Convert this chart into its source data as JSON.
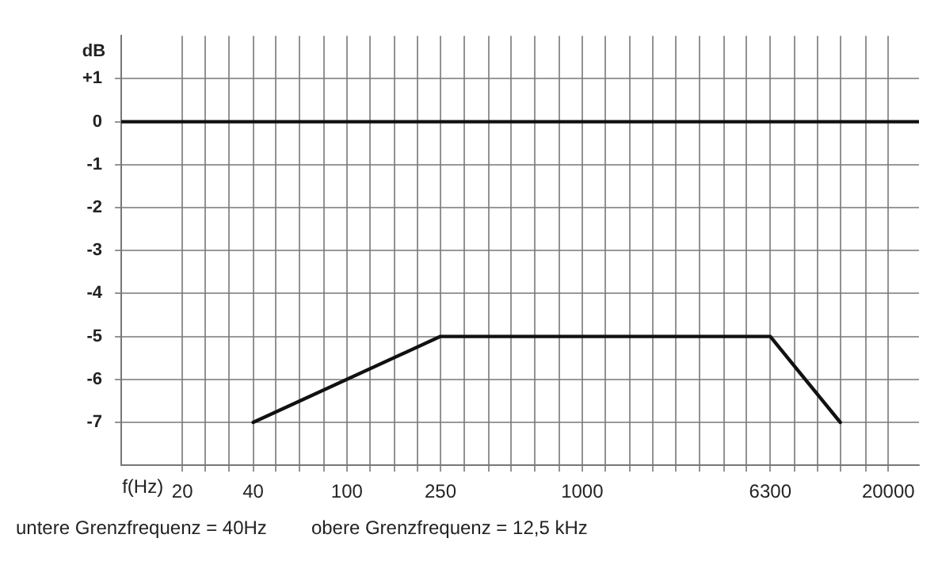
{
  "chart_data": {
    "type": "line",
    "xlabel": "f(Hz)",
    "ylabel": "dB",
    "log": "x",
    "grid": true,
    "legend": false,
    "marker": "none",
    "line_style": "solid",
    "xlim": [
      11,
      27000
    ],
    "ylim": [
      -8,
      2
    ],
    "xticks": [
      20,
      {
        "value": 25,
        "label": null
      },
      {
        "value": 31.5,
        "label": null
      },
      40,
      {
        "value": 50,
        "label": null
      },
      {
        "value": 63,
        "label": null
      },
      {
        "value": 80,
        "label": null
      },
      100,
      {
        "value": 125,
        "label": null
      },
      {
        "value": 160,
        "label": null
      },
      {
        "value": 200,
        "label": null
      },
      250,
      {
        "value": 315,
        "label": null
      },
      {
        "value": 400,
        "label": null
      },
      {
        "value": 500,
        "label": null
      },
      {
        "value": 630,
        "label": null
      },
      {
        "value": 800,
        "label": null
      },
      1000,
      {
        "value": 1250,
        "label": null
      },
      {
        "value": 1600,
        "label": null
      },
      {
        "value": 2000,
        "label": null
      },
      {
        "value": 2500,
        "label": null
      },
      {
        "value": 3150,
        "label": null
      },
      {
        "value": 4000,
        "label": null
      },
      {
        "value": 5000,
        "label": null
      },
      6300,
      {
        "value": 8000,
        "label": null
      },
      {
        "value": 10000,
        "label": null
      },
      {
        "value": 12500,
        "label": null
      },
      {
        "value": 16000,
        "label": null
      },
      20000
    ],
    "yticks": [
      {
        "value": 1,
        "label": "+1"
      },
      0,
      -1,
      -2,
      -3,
      -4,
      -5,
      -6,
      -7
    ],
    "series": [
      {
        "color": "#111111",
        "x": [
          11,
          27000
        ],
        "values": [
          0,
          0
        ]
      },
      {
        "color": "#111111",
        "x": [
          40,
          250,
          6300,
          12500
        ],
        "values": [
          -7,
          -5,
          -5,
          -7
        ]
      }
    ],
    "annotations": [
      "untere Grenzfrequenz = 40Hz",
      "obere Grenzfrequenz = 12,5 kHz"
    ]
  }
}
